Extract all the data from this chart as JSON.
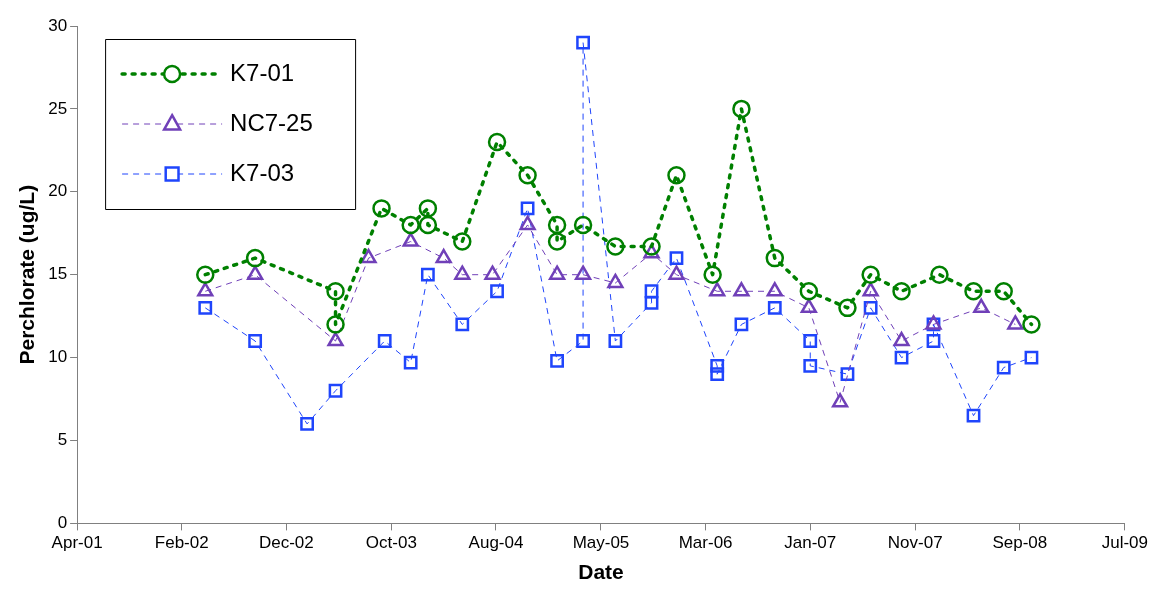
{
  "chart_data": {
    "type": "line",
    "xlabel": "Date",
    "ylabel": "Perchlorate (ug/L)",
    "xlim": [
      "2001-04-30",
      "2009-07-01"
    ],
    "xticks": [
      {
        "value": "2001-04-30",
        "label": "Apr-01"
      },
      {
        "value": "2002-02-22",
        "label": "Feb-02"
      },
      {
        "value": "2002-12-17",
        "label": "Dec-02"
      },
      {
        "value": "2003-10-12",
        "label": "Oct-03"
      },
      {
        "value": "2004-08-05",
        "label": "Aug-04"
      },
      {
        "value": "2005-05-31",
        "label": "May-05"
      },
      {
        "value": "2006-03-25",
        "label": "Mar-06"
      },
      {
        "value": "2007-01-17",
        "label": "Jan-07"
      },
      {
        "value": "2007-11-12",
        "label": "Nov-07"
      },
      {
        "value": "2008-09-05",
        "label": "Sep-08"
      },
      {
        "value": "2009-07-01",
        "label": "Jul-09"
      }
    ],
    "ylim": [
      0,
      30
    ],
    "yticks": [
      0,
      5,
      10,
      15,
      20,
      25,
      30
    ],
    "grid": false,
    "legend": "top left",
    "series": [
      {
        "name": "K7-01",
        "color": "#008000",
        "marker": "circle",
        "line_style": "dotted",
        "x": [
          "2002-04-30",
          "2002-09-19",
          "2003-05-06",
          "2003-05-06",
          "2003-09-14",
          "2003-12-06",
          "2004-01-24",
          "2004-01-24",
          "2004-05-01",
          "2004-08-08",
          "2004-11-03",
          "2005-01-26",
          "2005-01-26",
          "2005-04-10",
          "2005-07-11",
          "2005-10-22",
          "2006-01-01",
          "2006-04-14",
          "2006-07-05",
          "2006-10-08",
          "2007-01-13",
          "2007-05-03",
          "2007-07-08",
          "2007-10-04",
          "2008-01-20",
          "2008-04-26",
          "2008-07-21",
          "2008-10-08"
        ],
        "values": [
          15,
          16,
          14,
          12,
          19,
          18,
          19,
          18,
          17,
          23,
          21,
          18,
          17,
          18,
          16.7,
          16.7,
          21,
          15,
          25,
          16,
          14,
          13,
          15,
          14,
          15,
          14,
          14,
          12
        ]
      },
      {
        "name": "NC7-25",
        "color": "#7040b8",
        "marker": "triangle",
        "line_style": "dashed",
        "x": [
          "2002-04-30",
          "2002-09-19",
          "2003-05-06",
          "2003-08-08",
          "2003-12-06",
          "2004-03-09",
          "2004-05-01",
          "2004-07-26",
          "2004-11-03",
          "2005-01-26",
          "2005-04-10",
          "2005-07-11",
          "2005-10-22",
          "2006-01-01",
          "2006-04-27",
          "2006-07-05",
          "2006-10-08",
          "2007-01-13",
          "2007-04-12",
          "2007-07-08",
          "2007-10-04",
          "2008-01-03",
          "2008-05-18",
          "2008-08-23"
        ],
        "values": [
          14,
          15,
          11,
          16,
          17,
          16,
          15,
          15,
          18,
          15,
          15,
          14.5,
          16.3,
          15,
          14,
          14,
          14,
          13,
          7.3,
          14,
          11,
          12,
          13,
          12
        ]
      },
      {
        "name": "K7-03",
        "color": "#1f45fc",
        "marker": "square",
        "line_style": "dashed",
        "x": [
          "2002-04-30",
          "2002-09-19",
          "2003-02-14",
          "2003-05-06",
          "2003-09-23",
          "2003-12-06",
          "2004-01-24",
          "2004-05-01",
          "2004-08-08",
          "2004-11-03",
          "2005-01-26",
          "2005-04-10",
          "2005-04-10",
          "2005-07-11",
          "2005-10-22",
          "2005-10-22",
          "2006-01-01",
          "2006-04-27",
          "2006-04-27",
          "2006-07-05",
          "2006-10-08",
          "2007-01-17",
          "2007-01-17",
          "2007-05-03",
          "2007-07-08",
          "2007-10-04",
          "2008-01-03",
          "2008-01-03",
          "2008-04-26",
          "2008-07-21",
          "2008-10-08"
        ],
        "values": [
          13,
          11,
          6,
          8,
          11,
          9.7,
          15,
          12,
          14,
          19,
          9.8,
          11,
          29,
          11,
          13.3,
          14,
          16,
          9.5,
          9,
          12,
          13,
          11,
          9.5,
          9,
          13,
          10,
          11,
          12,
          6.5,
          9.4,
          10
        ]
      }
    ]
  }
}
